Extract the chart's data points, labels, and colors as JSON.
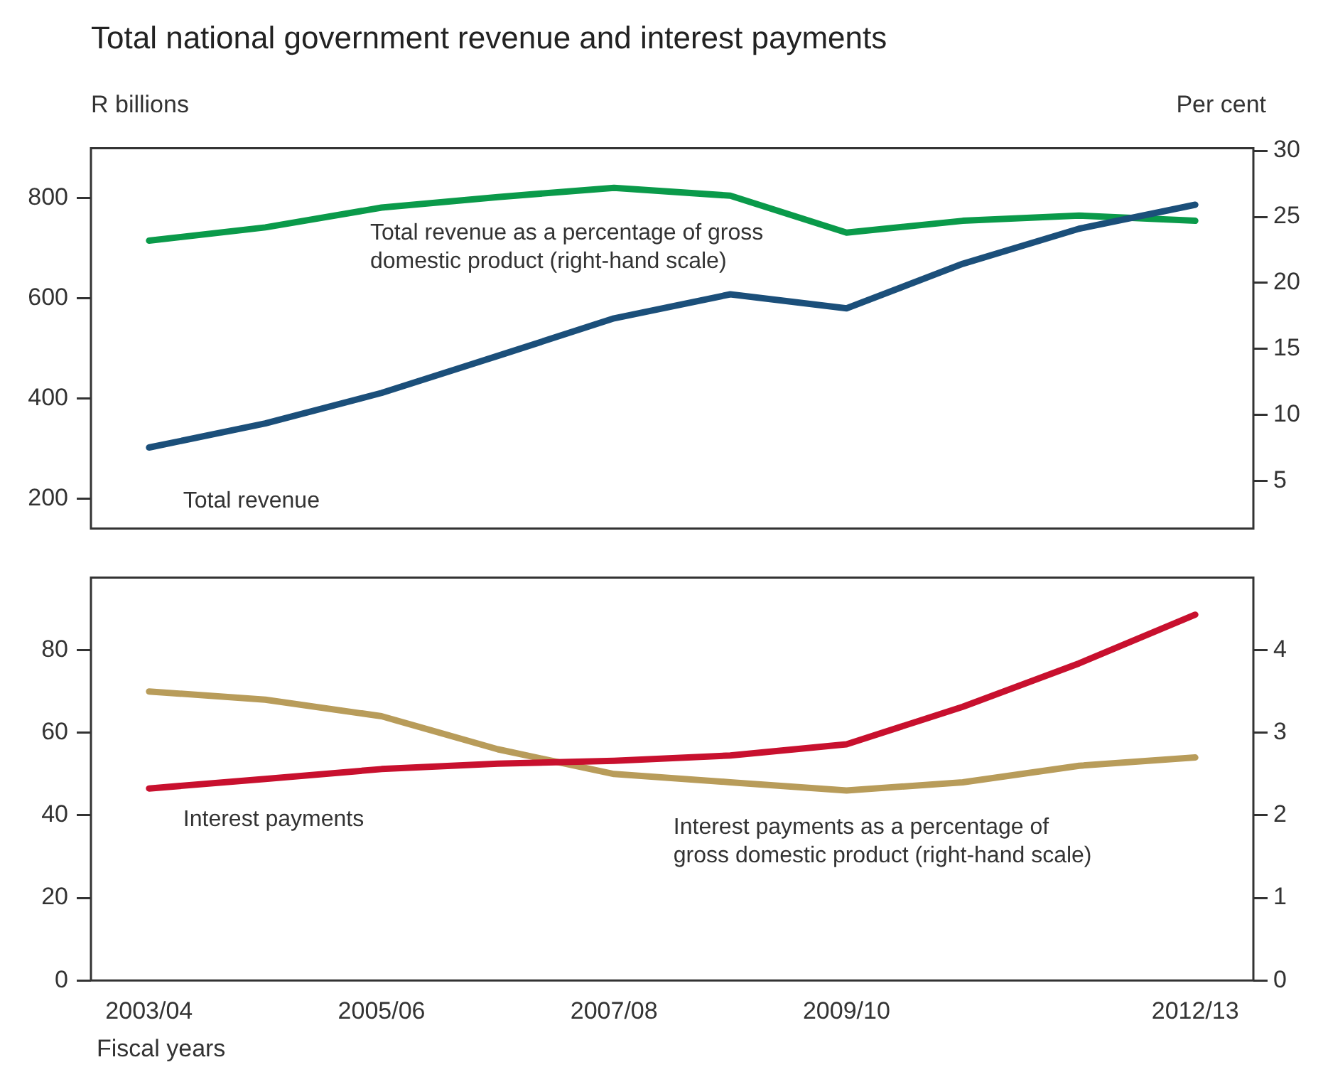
{
  "chart_data": [
    {
      "type": "line",
      "title": "Total national government revenue and interest payments",
      "ylabel": "R billions",
      "y2label": "Per cent",
      "categories": [
        "2003/04",
        null,
        "2005/06",
        null,
        "2007/08",
        null,
        "2009/10",
        null,
        null,
        "2012/13"
      ],
      "series": [
        {
          "name": "Total revenue",
          "color": "#1b4f7a",
          "values": [
            302,
            350,
            411,
            485,
            560,
            608,
            580,
            669,
            739,
            787
          ]
        },
        {
          "name": "Total revenue as a percentage of gross domestic product (right-hand scale)",
          "color": "#0a9a4a",
          "axis": "y2",
          "values": [
            23.2,
            24.2,
            25.7,
            26.5,
            27.2,
            26.6,
            23.8,
            24.7,
            25.1,
            24.7
          ]
        }
      ],
      "ylim": [
        140,
        900
      ],
      "yticks": [
        200,
        400,
        600,
        800
      ],
      "y2lim": [
        1.4,
        30.2
      ],
      "y2ticks": [
        5,
        10,
        15,
        20,
        25,
        30
      ],
      "tick_labels": "y"
    },
    {
      "type": "line",
      "xlabel": "Fiscal years",
      "categories": [
        "2003/04",
        null,
        "2005/06",
        null,
        "2007/08",
        null,
        "2009/10",
        null,
        null,
        "2012/13"
      ],
      "series": [
        {
          "name": "Interest payments",
          "color": "#c8102e",
          "values": [
            46.5,
            48.8,
            51.2,
            52.5,
            53.2,
            54.5,
            57.2,
            66.3,
            76.8,
            88.6
          ]
        },
        {
          "name": "Interest payments as a percentage of gross domestic product (right-hand scale)",
          "color": "#b89c5a",
          "axis": "y2",
          "values": [
            3.5,
            3.4,
            3.2,
            2.8,
            2.5,
            2.4,
            2.3,
            2.4,
            2.6,
            2.7
          ]
        }
      ],
      "ylim": [
        0,
        97.6
      ],
      "yticks": [
        0,
        20,
        40,
        60,
        80
      ],
      "y2lim": [
        0,
        4.88
      ],
      "y2ticks": [
        0,
        1,
        2,
        3,
        4
      ]
    }
  ]
}
